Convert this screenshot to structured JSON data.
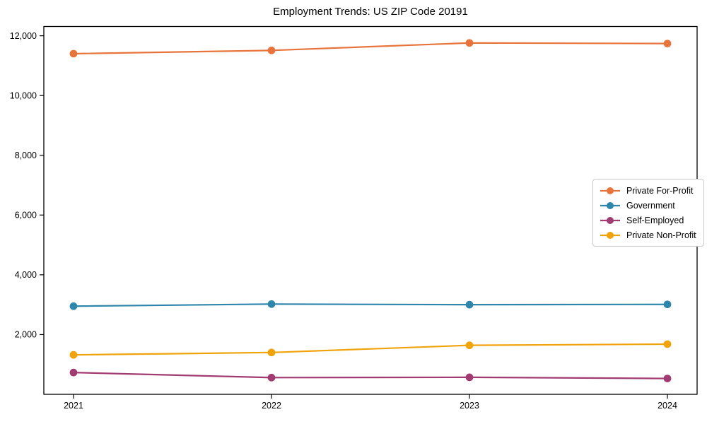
{
  "chart_data": {
    "type": "line",
    "title": "Employment Trends: US ZIP Code 20191",
    "categories": [
      "2021",
      "2022",
      "2023",
      "2024"
    ],
    "series": [
      {
        "name": "Private For-Profit",
        "color": "#E8743B",
        "values": [
          11400,
          11510,
          11760,
          11740
        ]
      },
      {
        "name": "Government",
        "color": "#2E86AB",
        "values": [
          2950,
          3020,
          3000,
          3010
        ]
      },
      {
        "name": "Self-Employed",
        "color": "#A23B72",
        "values": [
          730,
          560,
          570,
          530
        ]
      },
      {
        "name": "Private Non-Profit",
        "color": "#F0A30A",
        "values": [
          1320,
          1400,
          1640,
          1680
        ]
      }
    ],
    "xlabel": "",
    "ylabel": "",
    "ylim": [
      0,
      12310
    ],
    "yticks": [
      2000,
      4000,
      6000,
      8000,
      10000,
      12000
    ],
    "ytick_labels": [
      "2,000",
      "4,000",
      "6,000",
      "8,000",
      "10,000",
      "12,000"
    ],
    "grid": false,
    "legend_position": "center right",
    "axis_color": "#000000"
  }
}
